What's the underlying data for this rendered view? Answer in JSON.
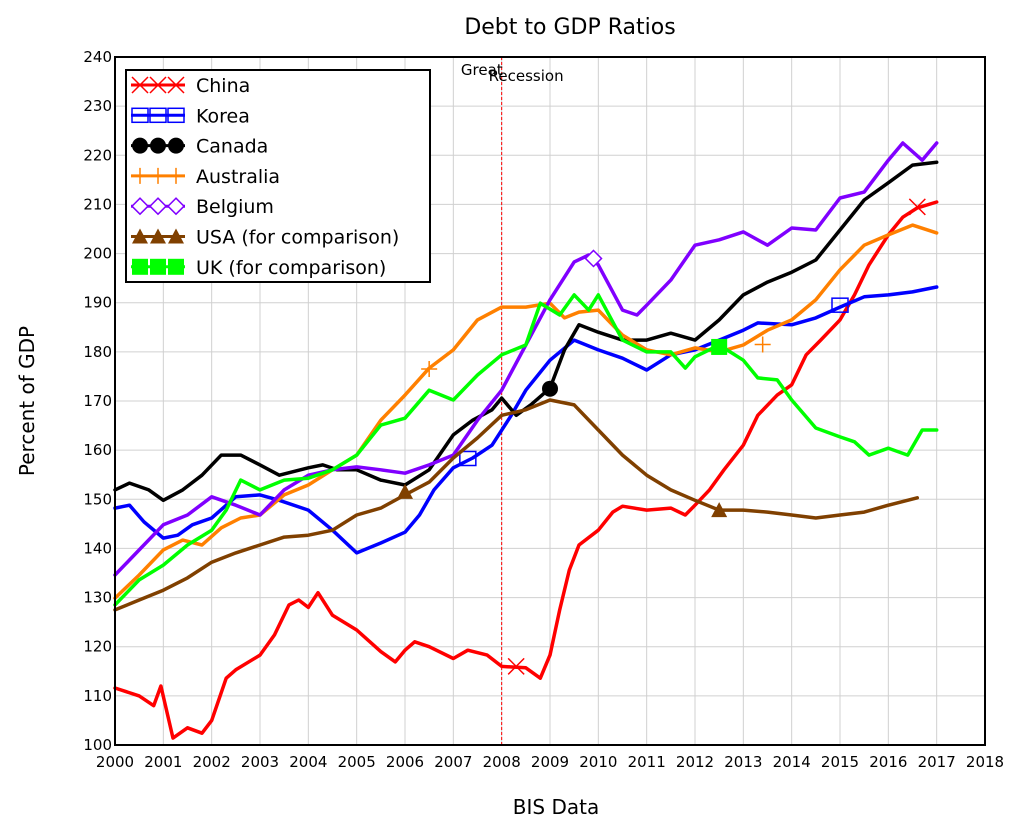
{
  "chart_data": {
    "type": "line",
    "title": "Debt to GDP Ratios",
    "xlabel": "BIS Data",
    "ylabel": "Percent of GDP",
    "xlim": [
      2000,
      2018
    ],
    "ylim": [
      100,
      240
    ],
    "xticks": [
      "2000",
      "2001",
      "2002",
      "2003",
      "2004",
      "2005",
      "2006",
      "2007",
      "2008",
      "2009",
      "2010",
      "2011",
      "2012",
      "2013",
      "2014",
      "2015",
      "2016",
      "2017",
      "2018"
    ],
    "yticks": [
      "100",
      "110",
      "120",
      "130",
      "140",
      "150",
      "160",
      "170",
      "180",
      "190",
      "200",
      "210",
      "220",
      "230",
      "240"
    ],
    "grid": true,
    "legend_position": "top-left",
    "annotation": {
      "x": 2008,
      "label_1": "Great",
      "label_2": "Recession",
      "color": "#ff0000"
    },
    "series": [
      {
        "name": "China",
        "color": "#ff0000",
        "marker": "x",
        "x": [
          2000,
          2000.5,
          2000.8,
          2000.95,
          2001.2,
          2001.5,
          2001.8,
          2002,
          2002.3,
          2002.5,
          2003,
          2003.3,
          2003.6,
          2003.8,
          2004,
          2004.2,
          2004.5,
          2005,
          2005.5,
          2005.8,
          2006,
          2006.2,
          2006.5,
          2007,
          2007.3,
          2007.7,
          2008,
          2008.5,
          2008.8,
          2009,
          2009.2,
          2009.4,
          2009.6,
          2010,
          2010.3,
          2010.5,
          2011,
          2011.5,
          2011.8,
          2012,
          2012.3,
          2012.6,
          2013,
          2013.3,
          2013.7,
          2014,
          2014.3,
          2014.6,
          2015,
          2015.3,
          2015.6,
          2016,
          2016.3,
          2016.6,
          2017
        ],
        "y": [
          111.6,
          110,
          108,
          112,
          101.4,
          103.5,
          102.4,
          105,
          113.6,
          115.3,
          118.3,
          122.4,
          128.5,
          129.5,
          128,
          131,
          126.4,
          123.4,
          119,
          116.9,
          119.3,
          121,
          120,
          117.6,
          119.3,
          118.3,
          116,
          115.7,
          113.6,
          118.3,
          127.5,
          135.6,
          140.7,
          143.7,
          147.4,
          148.6,
          147.8,
          148.2,
          146.8,
          148.8,
          151.9,
          156,
          161,
          167.1,
          171.2,
          173.3,
          179.4,
          182.4,
          186.5,
          191.6,
          197.7,
          203.8,
          207.4,
          209.3,
          210.5
        ],
        "markers_at": [
          [
            2008.3,
            116
          ],
          [
            2016.6,
            209.5
          ]
        ]
      },
      {
        "name": "Korea",
        "color": "#0000ff",
        "marker": "square-open",
        "x": [
          2000,
          2000.3,
          2000.6,
          2001,
          2001.3,
          2001.6,
          2002,
          2002.5,
          2003,
          2003.4,
          2004,
          2004.5,
          2005,
          2005.5,
          2006,
          2006.3,
          2006.6,
          2007,
          2007.4,
          2007.8,
          2008.2,
          2008.5,
          2009,
          2009.5,
          2010,
          2010.5,
          2011,
          2011.5,
          2012,
          2012.5,
          2013,
          2013.3,
          2014,
          2014.5,
          2015,
          2015.5,
          2016,
          2016.5,
          2017
        ],
        "y": [
          148.2,
          148.8,
          145.4,
          142.1,
          142.7,
          144.8,
          146.2,
          150.5,
          150.9,
          149.8,
          147.8,
          143.7,
          139.1,
          141.1,
          143.3,
          146.8,
          151.9,
          156.4,
          158.4,
          161,
          167.1,
          172.2,
          178.3,
          182.4,
          180.4,
          178.7,
          176.3,
          179.4,
          180.4,
          182.4,
          184.4,
          185.9,
          185.5,
          186.9,
          189.1,
          191.2,
          191.6,
          192.2,
          193.2
        ],
        "markers_at": [
          [
            2007.3,
            158.3
          ],
          [
            2015,
            189.5
          ]
        ]
      },
      {
        "name": "Canada",
        "color": "#000000",
        "marker": "circle",
        "x": [
          2000,
          2000.3,
          2000.7,
          2001,
          2001.4,
          2001.8,
          2002.2,
          2002.6,
          2003,
          2003.4,
          2004,
          2004.3,
          2004.6,
          2005,
          2005.5,
          2006,
          2006.5,
          2007,
          2007.4,
          2007.8,
          2008,
          2008.3,
          2008.6,
          2009,
          2009.3,
          2009.6,
          2010,
          2010.5,
          2011,
          2011.5,
          2012,
          2012.5,
          2013,
          2013.5,
          2014,
          2014.5,
          2015,
          2015.5,
          2016,
          2016.5,
          2017
        ],
        "y": [
          151.9,
          153.3,
          151.9,
          149.8,
          151.9,
          154.9,
          159,
          159,
          157,
          154.9,
          156.4,
          157,
          156,
          156,
          153.9,
          152.9,
          156,
          163.1,
          166.1,
          168.2,
          170.6,
          167.1,
          169.2,
          172.6,
          180.4,
          185.5,
          184,
          182.4,
          182.4,
          183.8,
          182.4,
          186.5,
          191.6,
          194.2,
          196.2,
          198.7,
          204.8,
          210.9,
          214.4,
          218,
          218.6
        ],
        "markers_at": [
          [
            2009,
            172.5
          ]
        ]
      },
      {
        "name": "Australia",
        "color": "#ff8000",
        "marker": "plus",
        "x": [
          2000,
          2000.5,
          2001,
          2001.4,
          2001.8,
          2002.2,
          2002.6,
          2003,
          2003.5,
          2004,
          2004.5,
          2005,
          2005.5,
          2006,
          2006.5,
          2007,
          2007.5,
          2008,
          2008.5,
          2009,
          2009.3,
          2009.6,
          2010,
          2010.5,
          2011,
          2011.5,
          2012,
          2012.5,
          2013,
          2013.5,
          2014,
          2014.5,
          2015,
          2015.5,
          2016,
          2016.5,
          2017
        ],
        "y": [
          129.9,
          134.6,
          139.7,
          141.7,
          140.7,
          144.2,
          146.2,
          146.8,
          150.9,
          152.9,
          156,
          159,
          166.1,
          171.2,
          176.7,
          180.4,
          186.5,
          189.1,
          189.1,
          189.9,
          186.9,
          188.1,
          188.5,
          183.4,
          180.4,
          179.4,
          180.8,
          180,
          181.4,
          184.4,
          186.5,
          190.6,
          196.7,
          201.7,
          203.8,
          205.8,
          204.2
        ],
        "markers_at": [
          [
            2006.5,
            176.5
          ],
          [
            2013.4,
            181.5
          ]
        ]
      },
      {
        "name": "Belgium",
        "color": "#8000ff",
        "marker": "diamond-open",
        "x": [
          2000,
          2000.5,
          2001,
          2001.5,
          2002,
          2002.5,
          2003,
          2003.5,
          2004,
          2004.5,
          2005,
          2005.5,
          2006,
          2006.5,
          2007,
          2007.5,
          2008,
          2008.5,
          2009,
          2009.5,
          2009.8,
          2010,
          2010.5,
          2010.8,
          2011,
          2011.5,
          2012,
          2012.5,
          2013,
          2013.5,
          2014,
          2014.5,
          2015,
          2015.5,
          2016,
          2016.3,
          2016.7,
          2017
        ],
        "y": [
          134.6,
          139.7,
          144.8,
          146.8,
          150.5,
          148.8,
          146.8,
          151.9,
          154.9,
          156,
          156.6,
          156,
          155.3,
          157,
          159,
          166.1,
          172.2,
          181.4,
          190.6,
          198.3,
          199.7,
          197.7,
          188.5,
          187.5,
          189.5,
          194.6,
          201.7,
          202.8,
          204.4,
          201.7,
          205.2,
          204.8,
          211.3,
          212.5,
          219,
          222.5,
          219,
          222.5
        ],
        "markers_at": [
          [
            2009.9,
            199
          ]
        ]
      },
      {
        "name": "USA (for comparison)",
        "color": "#804000",
        "marker": "triangle",
        "x": [
          2000,
          2000.5,
          2001,
          2001.5,
          2002,
          2002.5,
          2003,
          2003.5,
          2004,
          2004.5,
          2005,
          2005.5,
          2006,
          2006.5,
          2007,
          2007.5,
          2008,
          2008.5,
          2009,
          2009.5,
          2010,
          2010.5,
          2011,
          2011.5,
          2012,
          2012.5,
          2013,
          2013.5,
          2014,
          2014.5,
          2015,
          2015.5,
          2016,
          2016.6
        ],
        "y": [
          127.5,
          129.5,
          131.5,
          134,
          137.2,
          139.1,
          140.7,
          142.3,
          142.7,
          143.7,
          146.8,
          148.2,
          150.9,
          153.5,
          158.4,
          162.5,
          167.1,
          168.2,
          170.2,
          169.2,
          164.1,
          159,
          154.9,
          151.9,
          149.8,
          147.8,
          147.8,
          147.4,
          146.8,
          146.2,
          146.8,
          147.4,
          148.8,
          150.3
        ],
        "markers_at": [
          [
            2006,
            151.5
          ],
          [
            2012.5,
            147.8
          ]
        ]
      },
      {
        "name": "UK (for comparison)",
        "color": "#00ff00",
        "marker": "square",
        "x": [
          2000,
          2000.5,
          2001,
          2001.5,
          2002,
          2002.3,
          2002.6,
          2003,
          2003.5,
          2004,
          2004.5,
          2005,
          2005.5,
          2006,
          2006.5,
          2007,
          2007.5,
          2008,
          2008.5,
          2008.8,
          2009.2,
          2009.5,
          2009.8,
          2010,
          2010.5,
          2011,
          2011.5,
          2011.8,
          2012,
          2012.5,
          2013,
          2013.3,
          2013.7,
          2014,
          2014.5,
          2015,
          2015.3,
          2015.6,
          2016,
          2016.4,
          2016.7,
          2017
        ],
        "y": [
          128.5,
          133.6,
          136.6,
          140.7,
          143.7,
          147.8,
          153.9,
          151.9,
          153.9,
          154.3,
          156,
          159,
          165.1,
          166.5,
          172.2,
          170.2,
          175.3,
          179.4,
          181.4,
          189.9,
          187.5,
          191.6,
          188.5,
          191.6,
          182.4,
          180,
          180,
          176.7,
          179,
          181.4,
          178.3,
          174.7,
          174.3,
          170.2,
          164.5,
          162.7,
          161.7,
          159,
          160.4,
          159,
          164.1,
          164.1
        ],
        "markers_at": [
          [
            2012.5,
            181
          ]
        ]
      }
    ]
  }
}
